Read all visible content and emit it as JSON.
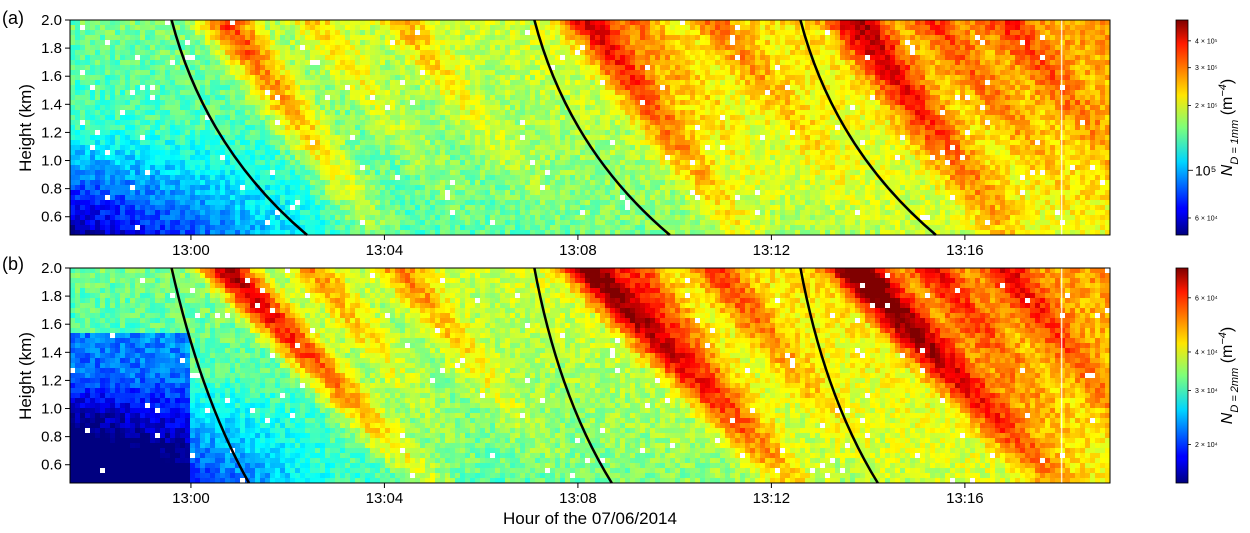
{
  "figure": {
    "xlabel": "Hour of the 07/06/2014"
  },
  "chart_data": [
    {
      "type": "heatmap",
      "panel_label": "(a)",
      "xlabel": "",
      "ylabel": "Height (km)",
      "x_ticks": [
        "13:00",
        "13:04",
        "13:08",
        "13:12",
        "13:16"
      ],
      "x_tick_minutes": [
        0,
        4,
        8,
        12,
        16
      ],
      "xlim_minutes": [
        -2.5,
        19.0
      ],
      "y_ticks": [
        0.6,
        0.8,
        1.0,
        1.2,
        1.4,
        1.6,
        1.8,
        2.0
      ],
      "y_tick_labels": [
        "0.6",
        "0.8",
        "1.0",
        "1.2",
        "1.4",
        "1.6",
        "1.8",
        "2.0"
      ],
      "ylim": [
        0.47,
        2.0
      ],
      "colormap": "jet",
      "colorbar": {
        "scale": "log",
        "label_main": "N",
        "label_sub": "D = 1mm",
        "label_units": "(m",
        "label_exp": "−4",
        "label_close": ")",
        "range": [
          50000,
          500000
        ],
        "ticks": [
          60000,
          100000,
          200000,
          300000,
          400000
        ],
        "tick_labels": [
          "6 × 10⁴",
          "10⁵",
          "2 × 10⁵",
          "3 × 10⁵",
          "4 × 10⁵"
        ],
        "tick_big": [
          false,
          true,
          false,
          false,
          false
        ]
      },
      "overlay_curves": [
        {
          "x_top": -0.4,
          "x_bottom": 2.4,
          "x_mid": 0.65
        },
        {
          "x_top": 7.1,
          "x_bottom": 9.9,
          "x_mid": 8.15
        },
        {
          "x_top": 12.6,
          "x_bottom": 15.4,
          "x_mid": 13.65
        }
      ]
    },
    {
      "type": "heatmap",
      "panel_label": "(b)",
      "xlabel": "Hour of the 07/06/2014",
      "ylabel": "Height (km)",
      "x_ticks": [
        "13:00",
        "13:04",
        "13:08",
        "13:12",
        "13:16"
      ],
      "x_tick_minutes": [
        0,
        4,
        8,
        12,
        16
      ],
      "xlim_minutes": [
        -2.5,
        19.0
      ],
      "y_ticks": [
        0.6,
        0.8,
        1.0,
        1.2,
        1.4,
        1.6,
        1.8,
        2.0
      ],
      "y_tick_labels": [
        "0.6",
        "0.8",
        "1.0",
        "1.2",
        "1.4",
        "1.6",
        "1.8",
        "2.0"
      ],
      "ylim": [
        0.47,
        2.0
      ],
      "colormap": "jet",
      "colorbar": {
        "scale": "log",
        "label_main": "N",
        "label_sub": "D = 2mm",
        "label_units": "(m",
        "label_exp": "−4",
        "label_close": ")",
        "range": [
          15000,
          75000
        ],
        "ticks": [
          20000,
          30000,
          40000,
          60000
        ],
        "tick_labels": [
          "2 × 10⁴",
          "3 × 10⁴",
          "4 × 10⁴",
          "6 × 10⁴"
        ],
        "tick_big": [
          false,
          false,
          false,
          false
        ]
      },
      "overlay_curves": [
        {
          "x_top": -0.4,
          "x_bottom": 1.2,
          "x_mid": 0.3
        },
        {
          "x_top": 7.1,
          "x_bottom": 8.7,
          "x_mid": 7.75
        },
        {
          "x_top": 12.6,
          "x_bottom": 14.2,
          "x_mid": 13.25
        }
      ]
    }
  ]
}
